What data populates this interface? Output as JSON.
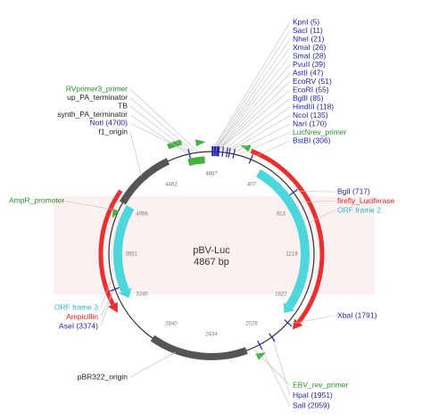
{
  "map": {
    "name": "pBV-Luc",
    "size": "4867 bp",
    "ruler": [
      4867,
      407,
      813,
      1218,
      1622,
      2029,
      2434,
      2840,
      3245,
      3651,
      4056,
      4462
    ],
    "right_top": [
      {
        "text": "KpnI (5)",
        "color": "#2323a8"
      },
      {
        "text": "SacI (11)",
        "color": "#2323a8"
      },
      {
        "text": "NheI (21)",
        "color": "#2323a8"
      },
      {
        "text": "XmaI (26)",
        "color": "#2323a8"
      },
      {
        "text": "SmaI (28)",
        "color": "#2323a8"
      },
      {
        "text": "PvuII (39)",
        "color": "#2323a8"
      },
      {
        "text": "AstII (47)",
        "color": "#2323a8"
      },
      {
        "text": "EcoRV (51)",
        "color": "#2323a8"
      },
      {
        "text": "EcoRI (55)",
        "color": "#2323a8"
      },
      {
        "text": "BglII (85)",
        "color": "#2323a8"
      },
      {
        "text": "HindIII (118)",
        "color": "#2323a8"
      },
      {
        "text": "NcoI (135)",
        "color": "#2323a8"
      },
      {
        "text": "NarI (170)",
        "color": "#2323a8"
      },
      {
        "text": "LucNrev_primer",
        "color": "#2f8f2f"
      },
      {
        "text": "BstBI (306)",
        "color": "#2323a8"
      }
    ],
    "left_top": [
      {
        "text": "RVprimer3_primer",
        "color": "#2f8f2f"
      },
      {
        "text": "up_PA_terminator",
        "color": "#222"
      },
      {
        "text": "TB",
        "color": "#222"
      },
      {
        "text": "synth_PA_terminator",
        "color": "#222"
      },
      {
        "text": "NotI (4700)",
        "color": "#2323a8"
      },
      {
        "text": "f1_origin",
        "color": "#222"
      }
    ],
    "right_mid": [
      {
        "text": "BglI (717)",
        "color": "#2323a8"
      },
      {
        "text": "firefly_Luciferase",
        "color": "#e02020"
      },
      {
        "text": "ORF frame 2",
        "color": "#2bb8c8"
      }
    ],
    "right_low": [
      {
        "text": "XbaI (1791)",
        "color": "#2323a8"
      }
    ],
    "bottom": [
      {
        "text": "EBV_rev_primer",
        "color": "#2f8f2f"
      },
      {
        "text": "HpaI (1951)",
        "color": "#2323a8"
      },
      {
        "text": "SalI (2059)",
        "color": "#2323a8"
      }
    ],
    "left_mid": [
      {
        "text": "AmpR_promoter",
        "color": "#2f8f2f"
      }
    ],
    "left_low": [
      {
        "text": "ORF frame 3",
        "color": "#2bb8c8"
      },
      {
        "text": "Ampicillin",
        "color": "#e02020"
      },
      {
        "text": "AseI (3374)",
        "color": "#2323a8"
      }
    ],
    "left_bottom": [
      {
        "text": "pBR322_origin",
        "color": "#222"
      }
    ]
  }
}
